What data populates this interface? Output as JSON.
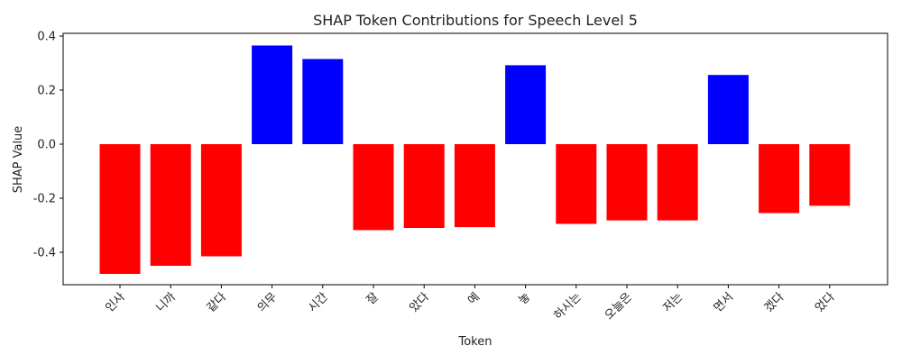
{
  "chart_data": {
    "type": "bar",
    "title": "SHAP Token Contributions for Speech Level 5",
    "xlabel": "Token",
    "ylabel": "SHAP Value",
    "categories": [
      "인사",
      "니까",
      "같다",
      "의무",
      "시간",
      "잘",
      "았다",
      "예",
      "놓",
      "하시는",
      "오늘은",
      "저는",
      "면서",
      "겠다",
      "었다"
    ],
    "values": [
      -0.48,
      -0.45,
      -0.415,
      0.365,
      0.315,
      -0.318,
      -0.31,
      -0.307,
      0.292,
      -0.295,
      -0.282,
      -0.282,
      0.256,
      -0.255,
      -0.228
    ],
    "ylim": [
      -0.52,
      0.41
    ],
    "yticks": [
      -0.4,
      -0.2,
      0.0,
      0.2,
      0.4
    ],
    "ytick_labels": [
      "-0.4",
      "-0.2",
      "0.0",
      "0.2",
      "0.4"
    ],
    "positive_color": "#0000ff",
    "negative_color": "#ff0000",
    "grid": false,
    "legend": "none"
  }
}
